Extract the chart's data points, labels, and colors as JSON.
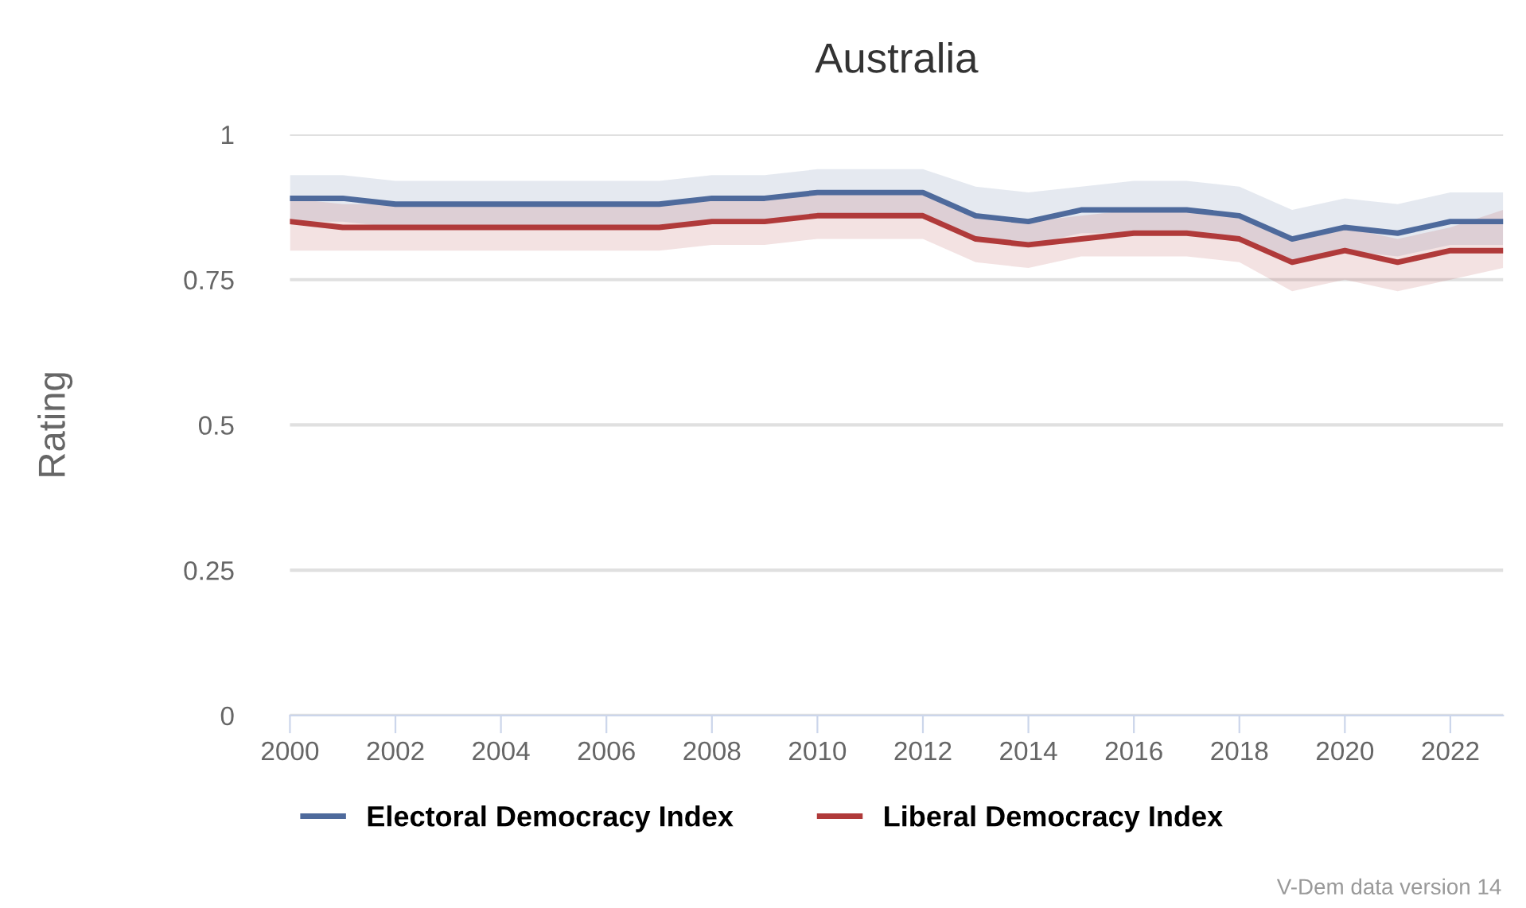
{
  "chart_data": {
    "type": "line",
    "title": "Australia",
    "ylabel": "Rating",
    "x": [
      2000,
      2001,
      2002,
      2003,
      2004,
      2005,
      2006,
      2007,
      2008,
      2009,
      2010,
      2011,
      2012,
      2013,
      2014,
      2015,
      2016,
      2017,
      2018,
      2019,
      2020,
      2021,
      2022,
      2023
    ],
    "series": [
      {
        "name": "Electoral Democracy Index",
        "color": "#4e6a9c",
        "values": [
          0.89,
          0.89,
          0.88,
          0.88,
          0.88,
          0.88,
          0.88,
          0.88,
          0.89,
          0.89,
          0.9,
          0.9,
          0.9,
          0.86,
          0.85,
          0.87,
          0.87,
          0.87,
          0.86,
          0.82,
          0.84,
          0.83,
          0.85,
          0.85
        ],
        "upper": [
          0.93,
          0.93,
          0.92,
          0.92,
          0.92,
          0.92,
          0.92,
          0.92,
          0.93,
          0.93,
          0.94,
          0.94,
          0.94,
          0.91,
          0.9,
          0.91,
          0.92,
          0.92,
          0.91,
          0.87,
          0.89,
          0.88,
          0.9,
          0.9
        ],
        "lower": [
          0.85,
          0.85,
          0.84,
          0.84,
          0.84,
          0.84,
          0.84,
          0.84,
          0.85,
          0.85,
          0.86,
          0.86,
          0.86,
          0.82,
          0.81,
          0.83,
          0.83,
          0.83,
          0.82,
          0.78,
          0.8,
          0.79,
          0.81,
          0.81
        ]
      },
      {
        "name": "Liberal Democracy Index",
        "color": "#b03a3a",
        "values": [
          0.85,
          0.84,
          0.84,
          0.84,
          0.84,
          0.84,
          0.84,
          0.84,
          0.85,
          0.85,
          0.86,
          0.86,
          0.86,
          0.82,
          0.81,
          0.82,
          0.83,
          0.83,
          0.82,
          0.78,
          0.8,
          0.78,
          0.8,
          0.8
        ],
        "upper": [
          0.89,
          0.88,
          0.88,
          0.88,
          0.88,
          0.88,
          0.88,
          0.88,
          0.89,
          0.89,
          0.9,
          0.9,
          0.9,
          0.86,
          0.85,
          0.86,
          0.87,
          0.87,
          0.86,
          0.82,
          0.84,
          0.82,
          0.84,
          0.87
        ],
        "lower": [
          0.8,
          0.8,
          0.8,
          0.8,
          0.8,
          0.8,
          0.8,
          0.8,
          0.81,
          0.81,
          0.82,
          0.82,
          0.82,
          0.78,
          0.77,
          0.79,
          0.79,
          0.79,
          0.78,
          0.73,
          0.75,
          0.73,
          0.75,
          0.77
        ]
      }
    ],
    "xlim": [
      2000,
      2023
    ],
    "xticks": [
      2000,
      2002,
      2004,
      2006,
      2008,
      2010,
      2012,
      2014,
      2016,
      2018,
      2020,
      2022
    ],
    "ylim": [
      0,
      1
    ],
    "yticks": [
      0,
      0.25,
      0.5,
      0.75,
      1
    ],
    "grid": "y",
    "legend": "bottom",
    "marker": "none",
    "line_style": "solid",
    "annotations": [
      "V-Dem data version 14"
    ]
  }
}
